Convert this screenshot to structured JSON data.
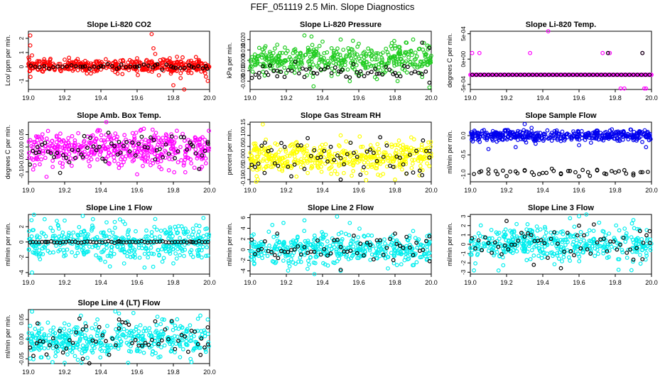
{
  "page_title": "FEF_051119  2.5 Min. Slope Diagnostics",
  "chart_data": [
    {
      "type": "scatter",
      "title": "Slope Li-820 CO2",
      "ylabel": "Lco/ ppm per min.",
      "color": "#ff0000",
      "xlim": [
        19.0,
        20.0
      ],
      "ylim": [
        -1.6,
        2.5
      ],
      "xticks": [
        19.0,
        19.2,
        19.4,
        19.6,
        19.8,
        20.0
      ],
      "yticks": [
        -1,
        0,
        1,
        2
      ],
      "series": [
        {
          "name": "colored",
          "x": [
            19.0,
            19.01,
            19.01,
            19.02,
            19.05,
            19.1,
            19.2,
            19.3,
            19.4,
            19.5,
            19.55,
            19.6,
            19.65,
            19.68,
            19.69,
            19.7,
            19.72,
            19.75,
            19.77,
            19.78,
            19.8,
            19.82,
            19.84,
            19.86,
            19.88,
            19.95,
            19.98,
            19.99
          ],
          "y": [
            0.2,
            1.5,
            2.2,
            0.8,
            0.4,
            -0.1,
            0.5,
            0.3,
            -0.2,
            0.1,
            0.3,
            0.6,
            0.4,
            2.3,
            1.3,
            0.9,
            -0.6,
            0.5,
            -0.2,
            0.6,
            -1.3,
            0.7,
            -0.8,
            -1.6,
            0.3,
            0.2,
            -0.7,
            -1.0
          ]
        },
        {
          "name": "black",
          "x": [
            19.3,
            19.4,
            19.5,
            19.6,
            19.7,
            19.8,
            19.9,
            19.98
          ],
          "y": [
            0.0,
            0.05,
            -0.05,
            0.0,
            0.1,
            -0.05,
            0.0,
            0.05
          ]
        }
      ],
      "noise": {
        "count": 400,
        "center": 0.05,
        "spread": 0.22,
        "black_count": 40,
        "black_center": 0.0,
        "black_spread": 0.08
      }
    },
    {
      "type": "scatter",
      "title": "Slope Li-820 Pressure",
      "ylabel": "kPa per min.",
      "color": "#22cc22",
      "xlim": [
        19.0,
        20.0
      ],
      "ylim": [
        -0.028,
        0.028
      ],
      "xticks": [
        19.0,
        19.2,
        19.4,
        19.6,
        19.8,
        20.0
      ],
      "yticks": [
        -0.02,
        -0.01,
        0.0,
        0.01,
        0.02
      ],
      "series": [
        {
          "name": "colored",
          "x": [
            19.05,
            19.15,
            19.2,
            19.3,
            19.35,
            19.4,
            19.45,
            19.5,
            19.55,
            19.6,
            19.7,
            19.8,
            19.9,
            19.95,
            19.99
          ],
          "y": [
            0.012,
            0.015,
            -0.012,
            0.024,
            -0.025,
            0.018,
            -0.015,
            0.02,
            -0.02,
            0.016,
            -0.018,
            0.014,
            0.02,
            -0.016,
            -0.026
          ]
        },
        {
          "name": "black",
          "x": [
            19.05,
            19.1,
            19.15,
            19.3,
            19.35,
            19.5,
            19.6,
            19.7,
            19.8,
            19.95,
            19.99
          ],
          "y": [
            -0.012,
            -0.014,
            -0.01,
            -0.016,
            -0.012,
            -0.011,
            -0.015,
            -0.013,
            -0.012,
            0.017,
            0.012
          ]
        }
      ],
      "noise": {
        "count": 420,
        "center": 0.0,
        "spread": 0.007,
        "black_count": 50,
        "black_center": -0.01,
        "black_spread": 0.004
      }
    },
    {
      "type": "scatter",
      "title": "Slope Li-820 Temp.",
      "ylabel": "degrees C per min.",
      "color": "#ff00ff",
      "xlim": [
        19.0,
        20.0
      ],
      "ylim": [
        -0.0006,
        0.00055
      ],
      "xticks": [
        19.0,
        19.2,
        19.4,
        19.6,
        19.8,
        20.0
      ],
      "yticks": [
        -0.0005,
        0.0,
        0.0005
      ],
      "ytick_labels": [
        "-5e-04",
        "0e+00",
        "5e-04"
      ],
      "series": [
        {
          "name": "colored",
          "x": [
            19.01,
            19.05,
            19.33,
            19.43,
            19.73,
            19.76,
            19.77,
            19.83,
            19.85,
            19.95,
            19.96,
            19.97
          ],
          "y": [
            0.00012,
            0.00012,
            0.00012,
            0.00055,
            0.00012,
            0.00012,
            0.00012,
            -0.00058,
            -0.00058,
            0.00012,
            -0.00058,
            -0.00058
          ]
        },
        {
          "name": "black",
          "x": [
            19.76,
            19.95
          ],
          "y": [
            0.00012,
            0.00012
          ]
        }
      ],
      "noise": {
        "count": 0,
        "line_value": -0.00031,
        "line_count": 180,
        "black_line_count": 45
      }
    },
    {
      "type": "scatter",
      "title": "Slope Amb. Box Temp.",
      "ylabel": "degrees C per min.",
      "color": "#ff00ff",
      "xlim": [
        19.0,
        20.0
      ],
      "ylim": [
        -0.14,
        0.1
      ],
      "xticks": [
        19.0,
        19.2,
        19.4,
        19.6,
        19.8,
        20.0
      ],
      "yticks": [
        -0.1,
        -0.05,
        0.0,
        0.05
      ],
      "series": [
        {
          "name": "colored",
          "x": [
            19.43,
            19.1,
            19.6
          ],
          "y": [
            0.1,
            -0.12,
            -0.11
          ]
        },
        {
          "name": "black",
          "x": [
            19.05,
            19.3,
            19.5,
            19.7,
            19.9,
            19.99
          ],
          "y": [
            0.0,
            -0.04,
            0.02,
            -0.05,
            0.01,
            0.02
          ]
        }
      ],
      "noise": {
        "count": 450,
        "center": -0.01,
        "spread": 0.035,
        "black_count": 60,
        "black_center": -0.01,
        "black_spread": 0.03
      }
    },
    {
      "type": "scatter",
      "title": "Slope Gas Stream RH",
      "ylabel": "percent per min.",
      "color": "#ffff00",
      "xlim": [
        19.0,
        20.0
      ],
      "ylim": [
        -0.11,
        0.16
      ],
      "xticks": [
        19.0,
        19.2,
        19.4,
        19.6,
        19.8,
        20.0
      ],
      "yticks": [
        -0.1,
        -0.05,
        0.0,
        0.05,
        0.1,
        0.15
      ],
      "series": [
        {
          "name": "colored",
          "x": [
            19.07,
            19.5,
            19.8
          ],
          "y": [
            0.15,
            0.1,
            -0.1
          ]
        },
        {
          "name": "black",
          "x": [
            19.08,
            19.5,
            19.95,
            19.99
          ],
          "y": [
            -0.07,
            -0.1,
            -0.08,
            0.0
          ]
        }
      ],
      "noise": {
        "count": 450,
        "center": 0.0,
        "spread": 0.035,
        "black_count": 55,
        "black_center": 0.0,
        "black_spread": 0.035
      }
    },
    {
      "type": "scatter",
      "title": "Slope Sample Flow",
      "ylabel": "ml/min per min.",
      "color": "#0000ee",
      "xlim": [
        19.0,
        20.0
      ],
      "ylim": [
        -1.2,
        0.35
      ],
      "xticks": [
        19.0,
        19.2,
        19.4,
        19.6,
        19.8,
        20.0
      ],
      "yticks": [
        -1.0,
        -0.5,
        0.0
      ],
      "series": [
        {
          "name": "colored",
          "x": [
            19.1,
            19.25,
            19.3,
            19.6,
            19.97
          ],
          "y": [
            -0.35,
            -0.3,
            0.3,
            -0.25,
            -0.3
          ]
        },
        {
          "name": "black",
          "x": [
            19.05,
            19.1,
            19.15,
            19.2,
            19.25,
            19.3,
            19.35,
            19.4,
            19.45,
            19.5,
            19.55,
            19.6,
            19.65,
            19.7,
            19.75,
            19.8,
            19.85,
            19.9,
            19.95
          ],
          "y": [
            -0.95,
            -0.88,
            -1.0,
            -1.05,
            -0.93,
            -0.9,
            -1.02,
            -0.97,
            -0.86,
            -1.0,
            -0.92,
            -1.06,
            -0.95,
            -0.89,
            -1.0,
            -0.96,
            -0.9,
            -1.03,
            -0.95
          ]
        }
      ],
      "noise": {
        "count": 420,
        "center": 0.0,
        "spread": 0.07,
        "black_count": 25,
        "black_center": -0.95,
        "black_spread": 0.05
      }
    },
    {
      "type": "scatter",
      "title": "Slope Line 1 Flow",
      "ylabel": "ml/min per min.",
      "color": "#00eeee",
      "xlim": [
        19.0,
        20.0
      ],
      "ylim": [
        -4.2,
        3.6
      ],
      "xticks": [
        19.0,
        19.2,
        19.4,
        19.6,
        19.8,
        20.0
      ],
      "yticks": [
        -4,
        -2,
        0,
        2
      ],
      "series": [
        {
          "name": "colored",
          "x": [
            19.02,
            19.2,
            19.3,
            19.45,
            19.7,
            19.8
          ],
          "y": [
            -4.0,
            2.8,
            3.4,
            -3.2,
            3.0,
            -2.8
          ]
        },
        {
          "name": "black",
          "x": [
            19.1,
            19.5,
            19.9
          ],
          "y": [
            0.0,
            0.1,
            0.0
          ]
        }
      ],
      "noise": {
        "count": 420,
        "center": 0.0,
        "spread": 1.2,
        "black_count": 60,
        "black_center": 0.0,
        "black_spread": 0.05
      }
    },
    {
      "type": "scatter",
      "title": "Slope Line 2 Flow",
      "ylabel": "ml/min per min.",
      "color": "#00eeee",
      "xlim": [
        19.0,
        20.0
      ],
      "ylim": [
        -4.6,
        6.6
      ],
      "xticks": [
        19.0,
        19.2,
        19.4,
        19.6,
        19.8,
        20.0
      ],
      "yticks": [
        -4,
        -2,
        0,
        2,
        4,
        6
      ],
      "series": [
        {
          "name": "colored",
          "x": [
            19.3,
            19.48,
            19.5,
            19.55,
            19.9
          ],
          "y": [
            5.5,
            6.2,
            -4.0,
            5.0,
            3.5
          ]
        },
        {
          "name": "black",
          "x": [
            19.15,
            19.5,
            19.8,
            19.99
          ],
          "y": [
            3.0,
            -3.8,
            3.0,
            2.5
          ]
        }
      ],
      "noise": {
        "count": 420,
        "center": 0.0,
        "spread": 1.4,
        "black_count": 55,
        "black_center": 0.0,
        "black_spread": 1.2
      }
    },
    {
      "type": "scatter",
      "title": "Slope Line 3 Flow",
      "ylabel": "ml/min per min.",
      "color": "#00eeee",
      "xlim": [
        19.0,
        20.0
      ],
      "ylim": [
        -3.2,
        3.2
      ],
      "xticks": [
        19.0,
        19.2,
        19.4,
        19.6,
        19.8,
        20.0
      ],
      "yticks": [
        -3,
        -2,
        -1,
        0,
        1,
        2,
        3
      ],
      "series": [
        {
          "name": "colored",
          "x": [
            19.02,
            19.55,
            19.6,
            19.9
          ],
          "y": [
            -2.8,
            2.8,
            3.0,
            2.6
          ]
        },
        {
          "name": "black",
          "x": [
            19.2,
            19.35,
            19.6,
            19.95,
            19.99
          ],
          "y": [
            2.5,
            -2.2,
            2.0,
            -1.6,
            1.4
          ]
        }
      ],
      "noise": {
        "count": 420,
        "center": 0.0,
        "spread": 0.9,
        "black_count": 55,
        "black_center": 0.0,
        "black_spread": 0.9
      }
    },
    {
      "type": "scatter",
      "title": "Slope Line 4 (LT) Flow",
      "ylabel": "ml/min per min.",
      "color": "#00eeee",
      "xlim": [
        19.0,
        20.0
      ],
      "ylim": [
        -0.062,
        0.075
      ],
      "xticks": [
        19.0,
        19.2,
        19.4,
        19.6,
        19.8,
        20.0
      ],
      "yticks": [
        -0.05,
        0.0,
        0.05
      ],
      "series": [
        {
          "name": "colored",
          "x": [
            19.02,
            19.2,
            19.5,
            19.55,
            19.9,
            19.99
          ],
          "y": [
            0.07,
            -0.06,
            0.065,
            -0.06,
            -0.058,
            0.05
          ]
        },
        {
          "name": "black",
          "x": [
            19.05,
            19.3,
            19.5,
            19.95,
            19.99
          ],
          "y": [
            0.04,
            -0.05,
            0.05,
            -0.04,
            0.03
          ]
        }
      ],
      "noise": {
        "count": 420,
        "center": 0.0,
        "spread": 0.022,
        "black_count": 55,
        "black_center": 0.0,
        "black_spread": 0.022
      }
    }
  ]
}
